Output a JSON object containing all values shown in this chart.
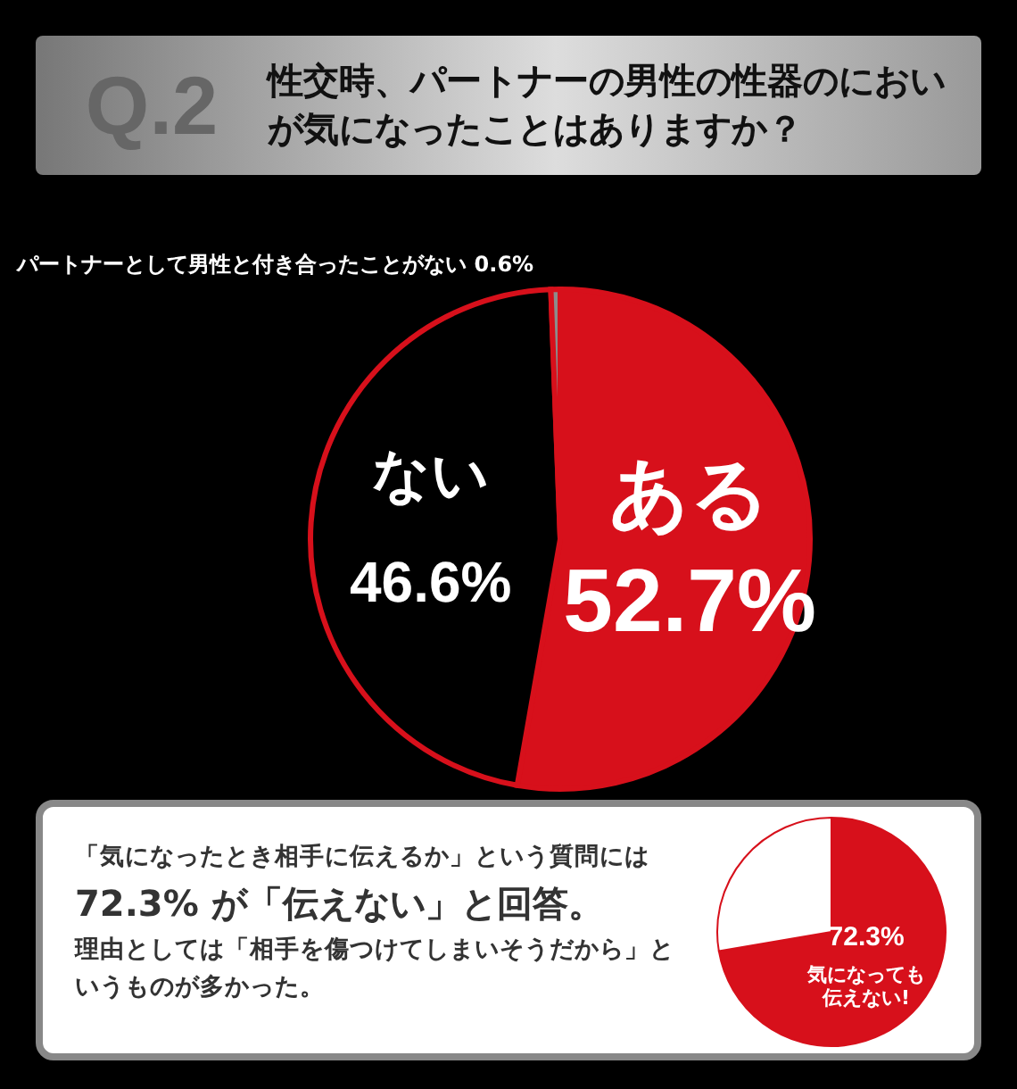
{
  "chart_data": [
    {
      "type": "pie",
      "title": "性交時、パートナーの男性の性器のにおいが気になったことはありますか？",
      "annotations": [
        "Q.2"
      ],
      "categories": [
        "ある",
        "ない",
        "パートナーとして男性と付き合ったことがない"
      ],
      "values": [
        52.7,
        46.6,
        0.6
      ],
      "colors": [
        "#d7101b",
        "#000000",
        "#8c8c8c"
      ],
      "value_labels": [
        "52.7%",
        "46.6%",
        "0.6%"
      ]
    },
    {
      "type": "pie",
      "annotations": [
        "「気になったとき相手に伝えるか」という質問には",
        "72.3% が「伝えない」と回答。",
        "理由としては「相手を傷つけてしまいそうだから」というものが多かった。"
      ],
      "categories": [
        "気になっても伝えない!",
        null
      ],
      "values": [
        72.3,
        27.7
      ],
      "colors": [
        "#d7101b",
        "#ffffff"
      ],
      "value_labels": [
        "72.3%",
        null
      ]
    }
  ]
}
